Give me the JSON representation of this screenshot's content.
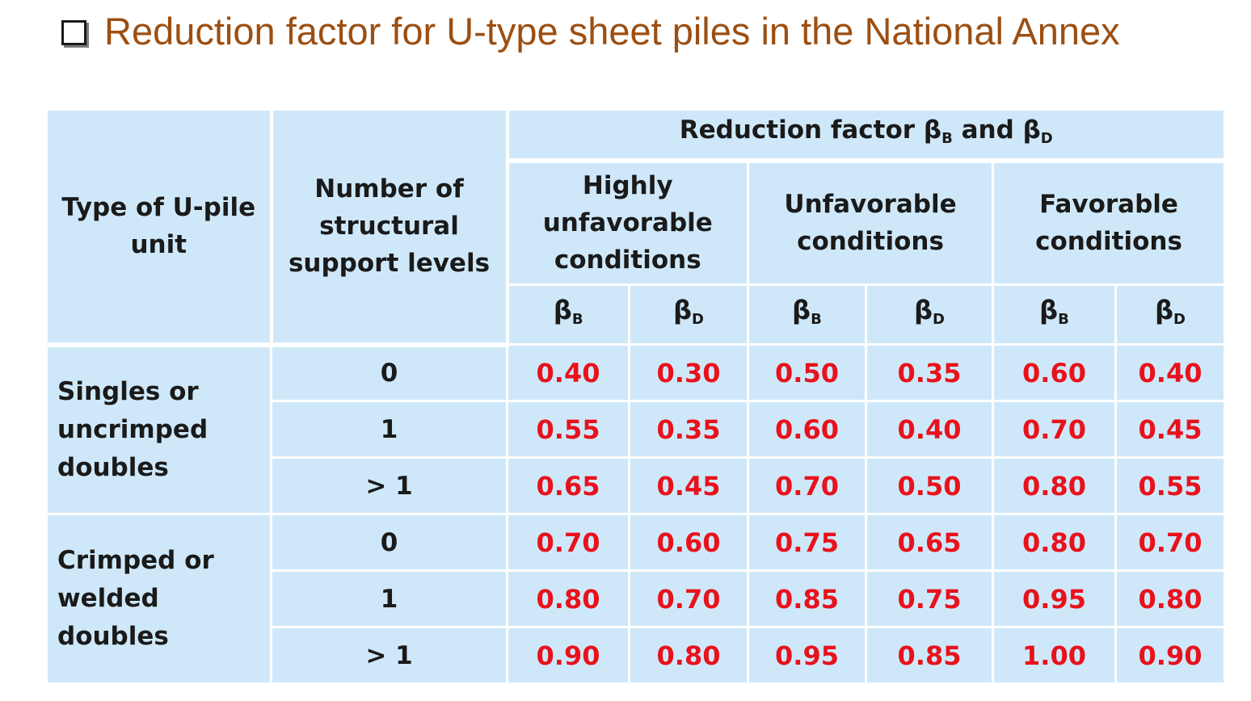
{
  "title": "Reduction factor for U-type sheet piles in the National Annex",
  "table": {
    "header": {
      "type_col": [
        "Type of U-pile",
        "unit"
      ],
      "support_col": [
        "Number of",
        "structural",
        "support levels"
      ],
      "reduction_prefix": "Reduction factor β",
      "reduction_sub_b": "B",
      "reduction_mid": " and β",
      "reduction_sub_d": "D",
      "conditions": [
        [
          "Highly",
          "unfavorable",
          "conditions"
        ],
        [
          "Unfavorable",
          "conditions"
        ],
        [
          "Favorable",
          "conditions"
        ]
      ],
      "symbol_base": "β",
      "symbol_sub": [
        "B",
        "D",
        "B",
        "D",
        "B",
        "D"
      ]
    },
    "groups": [
      {
        "label": [
          "Singles or",
          "uncrimped",
          "doubles"
        ],
        "rows": [
          {
            "support": "0",
            "values": [
              "0.40",
              "0.30",
              "0.50",
              "0.35",
              "0.60",
              "0.40"
            ]
          },
          {
            "support": "1",
            "values": [
              "0.55",
              "0.35",
              "0.60",
              "0.40",
              "0.70",
              "0.45"
            ]
          },
          {
            "support": "> 1",
            "values": [
              "0.65",
              "0.45",
              "0.70",
              "0.50",
              "0.80",
              "0.55"
            ]
          }
        ]
      },
      {
        "label": [
          "Crimped or",
          "welded",
          "doubles"
        ],
        "rows": [
          {
            "support": "0",
            "values": [
              "0.70",
              "0.60",
              "0.75",
              "0.65",
              "0.80",
              "0.70"
            ]
          },
          {
            "support": "1",
            "values": [
              "0.80",
              "0.70",
              "0.85",
              "0.75",
              "0.95",
              "0.80"
            ]
          },
          {
            "support": "> 1",
            "values": [
              "0.90",
              "0.80",
              "0.95",
              "0.85",
              "1.00",
              "0.90"
            ]
          }
        ]
      }
    ]
  }
}
